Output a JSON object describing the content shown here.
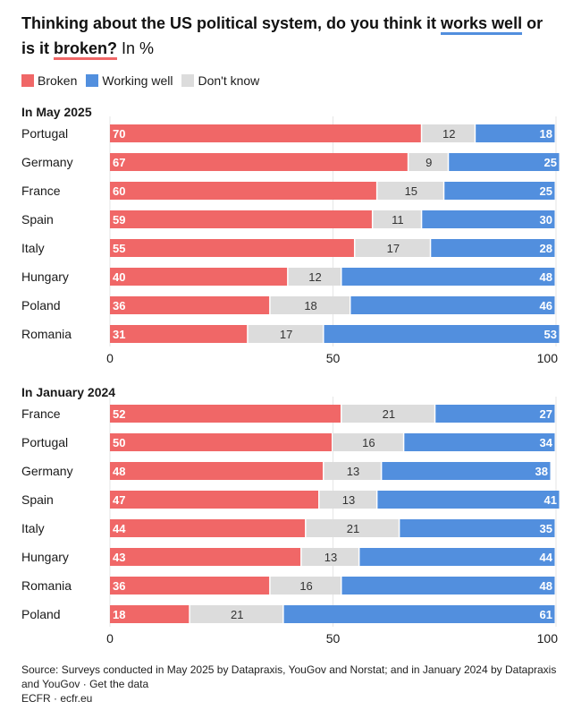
{
  "title": {
    "part1": "Thinking about the US political system, do you think it ",
    "highlight_well": "works well",
    "part2": " or is it ",
    "highlight_broken": "broken?",
    "unit": " In %"
  },
  "legend": [
    {
      "label": "Broken",
      "color": "#f06767"
    },
    {
      "label": "Working well",
      "color": "#528fde"
    },
    {
      "label": "Don't know",
      "color": "#dcdcdc"
    }
  ],
  "colors": {
    "broken": "#f06767",
    "working_well": "#528fde",
    "dont_know": "#dcdcdc"
  },
  "chart_data": [
    {
      "type": "bar",
      "stacked": true,
      "orientation": "horizontal",
      "title": "In May 2025",
      "categories": [
        "Portugal",
        "Germany",
        "France",
        "Spain",
        "Italy",
        "Hungary",
        "Poland",
        "Romania"
      ],
      "series": [
        {
          "name": "Broken",
          "values": [
            70,
            67,
            60,
            59,
            55,
            40,
            36,
            31
          ]
        },
        {
          "name": "Don't know",
          "values": [
            12,
            9,
            15,
            11,
            17,
            12,
            18,
            17
          ]
        },
        {
          "name": "Working well",
          "values": [
            18,
            25,
            25,
            30,
            28,
            48,
            46,
            53
          ]
        }
      ],
      "xlim": [
        0,
        100
      ],
      "xticks": [
        "0",
        "50",
        "100"
      ],
      "grid": true,
      "legend": "top-left"
    },
    {
      "type": "bar",
      "stacked": true,
      "orientation": "horizontal",
      "title": "In January 2024",
      "categories": [
        "France",
        "Portugal",
        "Germany",
        "Spain",
        "Italy",
        "Hungary",
        "Romania",
        "Poland"
      ],
      "series": [
        {
          "name": "Broken",
          "values": [
            52,
            50,
            48,
            47,
            44,
            43,
            36,
            18
          ]
        },
        {
          "name": "Don't know",
          "values": [
            21,
            16,
            13,
            13,
            21,
            13,
            16,
            21
          ]
        },
        {
          "name": "Working well",
          "values": [
            27,
            34,
            38,
            41,
            35,
            44,
            48,
            61
          ]
        }
      ],
      "xlim": [
        0,
        100
      ],
      "xticks": [
        "0",
        "50",
        "100"
      ],
      "grid": true,
      "legend": "top-left"
    }
  ],
  "source": {
    "line1": "Source: Surveys conducted in May 2025 by Datapraxis, YouGov and Norstat; and in January 2024 by Datapraxis and YouGov",
    "link": "Get the data",
    "credit": "ECFR · ecfr.eu"
  }
}
